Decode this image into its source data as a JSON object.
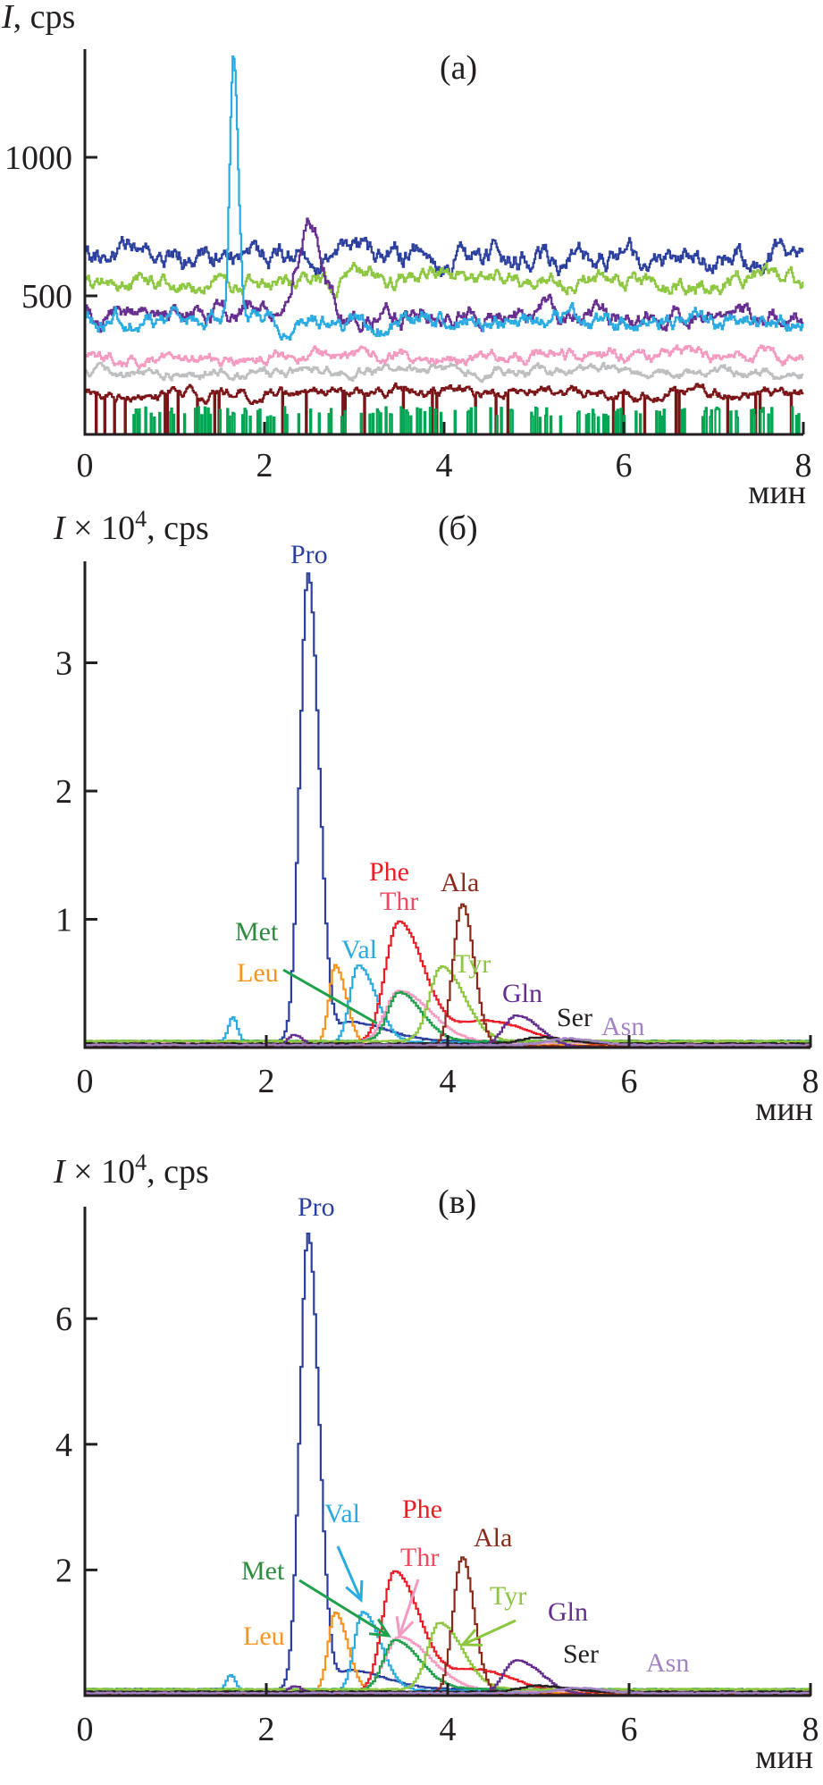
{
  "chart_data": [
    {
      "type": "line",
      "panel_label": "(a)",
      "ylabel": {
        "var": "I",
        "text": "",
        "sup": "",
        "unit": ", cps"
      },
      "xlabel": "мин",
      "xlim": [
        0,
        8
      ],
      "ylim": [
        0,
        1400
      ],
      "xticks": [
        "0",
        "2",
        "4",
        "6",
        "8"
      ],
      "yticks": [
        {
          "value": 500,
          "label": "500"
        },
        {
          "value": 1000,
          "label": "1000"
        }
      ],
      "series": [
        {
          "color": "#2b3f9e",
          "level": 640,
          "amp": 55,
          "seed": 11
        },
        {
          "color": "#8dc63f",
          "level": 560,
          "amp": 40,
          "seed": 23
        },
        {
          "color": "#662d91",
          "level": 430,
          "amp": 45,
          "seed": 37,
          "peaks": [
            {
              "t": 2.5,
              "h": 330,
              "sl": 0.15,
              "sr": 0.15
            }
          ]
        },
        {
          "color": "#29abe2",
          "level": 410,
          "amp": 40,
          "seed": 41,
          "peaks": [
            {
              "t": 1.65,
              "h": 960,
              "sl": 0.04,
              "sr": 0.05
            }
          ]
        },
        {
          "color": "#f49ac1",
          "level": 280,
          "amp": 30,
          "seed": 53
        },
        {
          "color": "#bcbec0",
          "level": 225,
          "amp": 25,
          "seed": 67
        },
        {
          "color": "#7b1416",
          "level": 150,
          "amp": 25,
          "seed": 71,
          "dips": 0.12
        },
        {
          "color": "#00a651",
          "level": 0,
          "amp": 0,
          "seed": 83,
          "spikes": 100
        },
        {
          "color": "#f7941d",
          "level": 0,
          "amp": 0,
          "seed": 97
        }
      ],
      "annotations": []
    },
    {
      "type": "line",
      "panel_label": "(б)",
      "ylabel": {
        "var": "I",
        "text": " × 10",
        "sup": "4",
        "unit": ", cps"
      },
      "xlabel": "мин",
      "xlim": [
        0,
        8
      ],
      "ylim": [
        0,
        3.78
      ],
      "xticks": [
        "0",
        "2",
        "4",
        "6",
        "8"
      ],
      "yticks": [
        {
          "value": 1,
          "label": "1"
        },
        {
          "value": 2,
          "label": "2"
        },
        {
          "value": 3,
          "label": "3"
        }
      ],
      "series": [
        {
          "name": "Pro",
          "color": "#2b3f9e",
          "level": 0.05,
          "peaks": [
            {
              "t": 2.45,
              "h": 3.65,
              "sl": 0.09,
              "sr": 0.12
            },
            {
              "t": 2.9,
              "h": 0.15,
              "sl": 0.1,
              "sr": 0.4
            }
          ]
        },
        {
          "name": "Leu",
          "color": "#f7941d",
          "level": 0.02,
          "peaks": [
            {
              "t": 2.75,
              "h": 0.62,
              "sl": 0.07,
              "sr": 0.12
            }
          ]
        },
        {
          "name": "Val",
          "color": "#29abe2",
          "level": 0.04,
          "peaks": [
            {
              "t": 1.62,
              "h": 0.2,
              "sl": 0.05,
              "sr": 0.05
            },
            {
              "t": 3.0,
              "h": 0.6,
              "sl": 0.09,
              "sr": 0.2
            }
          ]
        },
        {
          "name": "Phe",
          "color": "#ed1c24",
          "level": 0.03,
          "peaks": [
            {
              "t": 3.45,
              "h": 0.95,
              "sl": 0.15,
              "sr": 0.28
            },
            {
              "t": 4.4,
              "h": 0.18,
              "sl": 0.3,
              "sr": 0.45
            }
          ]
        },
        {
          "name": "Thr",
          "color": "#f49ac1",
          "level": 0.04,
          "peaks": [
            {
              "t": 3.45,
              "h": 0.4,
              "sl": 0.15,
              "sr": 0.35
            }
          ]
        },
        {
          "name": "Met",
          "color": "#1fa04a",
          "level": 0.05,
          "peaks": [
            {
              "t": 3.45,
              "h": 0.38,
              "sl": 0.12,
              "sr": 0.25
            }
          ]
        },
        {
          "name": "Tyr",
          "color": "#8dc63f",
          "level": 0.05,
          "peaks": [
            {
              "t": 3.92,
              "h": 0.58,
              "sl": 0.13,
              "sr": 0.25
            }
          ]
        },
        {
          "name": "Ala",
          "color": "#8b2a1a",
          "level": 0.01,
          "peaks": [
            {
              "t": 4.15,
              "h": 1.11,
              "sl": 0.1,
              "sr": 0.13
            }
          ]
        },
        {
          "name": "Gln",
          "color": "#662d91",
          "level": 0.0,
          "peaks": [
            {
              "t": 2.3,
              "h": 0.1,
              "sl": 0.08,
              "sr": 0.1
            },
            {
              "t": 4.75,
              "h": 0.25,
              "sl": 0.15,
              "sr": 0.25
            }
          ]
        },
        {
          "name": "Ser",
          "color": "#231f20",
          "level": 0.03,
          "peaks": [
            {
              "t": 5.0,
              "h": 0.05,
              "sl": 0.2,
              "sr": 0.3
            }
          ]
        },
        {
          "name": "Asn",
          "color": "#a283c4",
          "level": 0.02,
          "peaks": [
            {
              "t": 5.3,
              "h": 0.05,
              "sl": 0.2,
              "sr": 0.3
            }
          ]
        }
      ],
      "annotations": [
        {
          "text": "Pro",
          "color": "#2b3f9e"
        },
        {
          "text": "Phe",
          "color": "#ed1c24"
        },
        {
          "text": "Thr",
          "color": "#ee4b61"
        },
        {
          "text": "Ala",
          "color": "#8b2a1a"
        },
        {
          "text": "Met",
          "color": "#2e8b3e"
        },
        {
          "text": "Val",
          "color": "#29abe2"
        },
        {
          "text": "Leu",
          "color": "#f7941d"
        },
        {
          "text": "Tyr",
          "color": "#8dc63f"
        },
        {
          "text": "Gln",
          "color": "#662d91"
        },
        {
          "text": "Ser",
          "color": "#231f20"
        },
        {
          "text": "Asn",
          "color": "#a283c4"
        }
      ]
    },
    {
      "type": "line",
      "panel_label": "(в)",
      "ylabel": {
        "var": "I",
        "text": " × 10",
        "sup": "4",
        "unit": ", cps"
      },
      "xlabel": "мин",
      "xlim": [
        0,
        8
      ],
      "ylim": [
        0,
        7.8
      ],
      "xticks": [
        "0",
        "2",
        "4",
        "6",
        "8"
      ],
      "yticks": [
        {
          "value": 2,
          "label": "2"
        },
        {
          "value": 4,
          "label": "4"
        },
        {
          "value": 6,
          "label": "6"
        }
      ],
      "series": [
        {
          "name": "Pro",
          "color": "#2b3f9e",
          "level": 0.1,
          "peaks": [
            {
              "t": 2.45,
              "h": 7.25,
              "sl": 0.09,
              "sr": 0.12
            },
            {
              "t": 2.9,
              "h": 0.3,
              "sl": 0.1,
              "sr": 0.4
            }
          ]
        },
        {
          "name": "Leu",
          "color": "#f7941d",
          "level": 0.04,
          "peaks": [
            {
              "t": 2.75,
              "h": 1.28,
              "sl": 0.08,
              "sr": 0.14
            }
          ]
        },
        {
          "name": "Val",
          "color": "#29abe2",
          "level": 0.08,
          "peaks": [
            {
              "t": 1.6,
              "h": 0.25,
              "sl": 0.05,
              "sr": 0.05
            },
            {
              "t": 3.05,
              "h": 1.25,
              "sl": 0.09,
              "sr": 0.2
            }
          ]
        },
        {
          "name": "Phe",
          "color": "#ed1c24",
          "level": 0.06,
          "peaks": [
            {
              "t": 3.4,
              "h": 1.92,
              "sl": 0.13,
              "sr": 0.28
            },
            {
              "t": 4.3,
              "h": 0.35,
              "sl": 0.3,
              "sr": 0.4
            }
          ]
        },
        {
          "name": "Thr",
          "color": "#f49ac1",
          "level": 0.08,
          "peaks": [
            {
              "t": 3.45,
              "h": 0.85,
              "sl": 0.15,
              "sr": 0.35
            }
          ]
        },
        {
          "name": "Met",
          "color": "#1fa04a",
          "level": 0.1,
          "peaks": [
            {
              "t": 3.4,
              "h": 0.78,
              "sl": 0.12,
              "sr": 0.28
            }
          ]
        },
        {
          "name": "Tyr",
          "color": "#8dc63f",
          "level": 0.1,
          "peaks": [
            {
              "t": 3.9,
              "h": 1.06,
              "sl": 0.13,
              "sr": 0.25
            }
          ]
        },
        {
          "name": "Ala",
          "color": "#8b2a1a",
          "level": 0.02,
          "peaks": [
            {
              "t": 4.15,
              "h": 2.19,
              "sl": 0.1,
              "sr": 0.13
            }
          ]
        },
        {
          "name": "Gln",
          "color": "#662d91",
          "level": 0.0,
          "peaks": [
            {
              "t": 2.3,
              "h": 0.15,
              "sl": 0.08,
              "sr": 0.1
            },
            {
              "t": 4.75,
              "h": 0.56,
              "sl": 0.15,
              "sr": 0.28
            }
          ]
        },
        {
          "name": "Ser",
          "color": "#231f20",
          "level": 0.06,
          "peaks": [
            {
              "t": 5.0,
              "h": 0.1,
              "sl": 0.2,
              "sr": 0.3
            }
          ]
        },
        {
          "name": "Asn",
          "color": "#a283c4",
          "level": 0.04,
          "peaks": [
            {
              "t": 5.4,
              "h": 0.08,
              "sl": 0.2,
              "sr": 0.3
            }
          ]
        }
      ],
      "annotations": [
        {
          "text": "Pro",
          "color": "#2b3f9e"
        },
        {
          "text": "Val",
          "color": "#29abe2"
        },
        {
          "text": "Phe",
          "color": "#ed1c24"
        },
        {
          "text": "Ala",
          "color": "#8b2a1a"
        },
        {
          "text": "Thr",
          "color": "#ee4b61"
        },
        {
          "text": "Met",
          "color": "#2e8b3e"
        },
        {
          "text": "Tyr",
          "color": "#8dc63f"
        },
        {
          "text": "Gln",
          "color": "#662d91"
        },
        {
          "text": "Leu",
          "color": "#f7941d"
        },
        {
          "text": "Ser",
          "color": "#231f20"
        },
        {
          "text": "Asn",
          "color": "#a283c4"
        }
      ]
    }
  ]
}
